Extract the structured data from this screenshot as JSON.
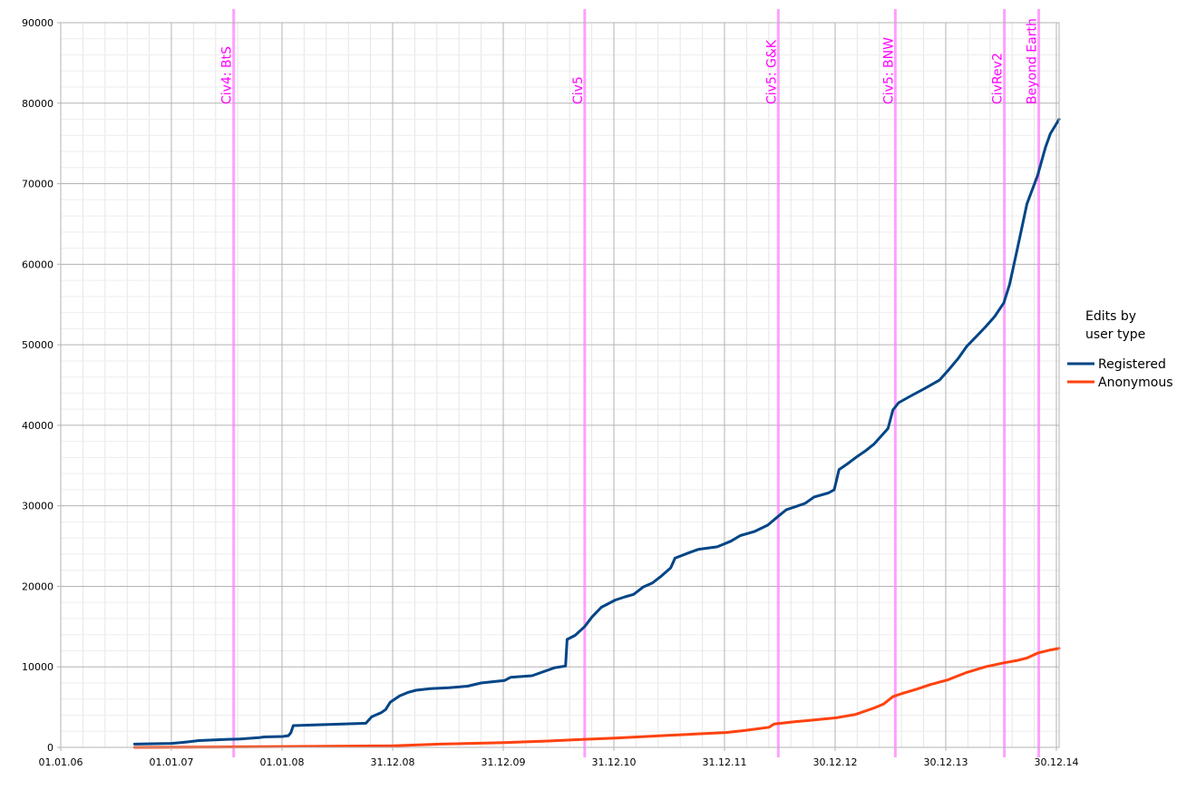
{
  "chart_data": {
    "type": "line",
    "title": "",
    "xlabel": "",
    "ylabel": "",
    "x_tick_labels": [
      "01.01.06",
      "01.01.07",
      "01.01.08",
      "31.12.08",
      "31.12.09",
      "31.12.10",
      "31.12.11",
      "30.12.12",
      "30.12.13",
      "30.12.14"
    ],
    "x_range": [
      "2006-01-01",
      "2014-12-30"
    ],
    "ylim": [
      0,
      90000
    ],
    "y_ticks": [
      0,
      10000,
      20000,
      30000,
      40000,
      50000,
      60000,
      70000,
      80000,
      90000
    ],
    "grid": {
      "major": true,
      "minor": true
    },
    "legend": {
      "title": "Edits by user type",
      "position": "right"
    },
    "events": [
      {
        "date": "2007-07-24",
        "label": "Civ4: BtS"
      },
      {
        "date": "2010-09-21",
        "label": "Civ5"
      },
      {
        "date": "2012-06-19",
        "label": "Civ5: G&K"
      },
      {
        "date": "2013-07-09",
        "label": "Civ5: BNW"
      },
      {
        "date": "2014-07-03",
        "label": "CivRev2"
      },
      {
        "date": "2014-10-24",
        "label": "Beyond Earth"
      }
    ],
    "series": [
      {
        "name": "Registered",
        "color": "#004586",
        "points": [
          [
            "2006-09-01",
            400
          ],
          [
            "2006-11-01",
            450
          ],
          [
            "2007-01-01",
            500
          ],
          [
            "2007-02-15",
            650
          ],
          [
            "2007-04-01",
            850
          ],
          [
            "2007-06-01",
            950
          ],
          [
            "2007-08-15",
            1050
          ],
          [
            "2007-10-15",
            1200
          ],
          [
            "2007-11-01",
            1300
          ],
          [
            "2008-01-01",
            1350
          ],
          [
            "2008-01-20",
            1450
          ],
          [
            "2008-01-28",
            1800
          ],
          [
            "2008-02-05",
            2700
          ],
          [
            "2008-06-01",
            2850
          ],
          [
            "2008-09-01",
            2950
          ],
          [
            "2008-10-01",
            3000
          ],
          [
            "2008-10-20",
            3800
          ],
          [
            "2008-11-20",
            4300
          ],
          [
            "2008-12-05",
            4700
          ],
          [
            "2008-12-20",
            5600
          ],
          [
            "2009-01-20",
            6400
          ],
          [
            "2009-02-15",
            6800
          ],
          [
            "2009-03-15",
            7100
          ],
          [
            "2009-05-01",
            7300
          ],
          [
            "2009-07-01",
            7400
          ],
          [
            "2009-09-01",
            7600
          ],
          [
            "2009-10-15",
            8000
          ],
          [
            "2009-12-31",
            8300
          ],
          [
            "2010-01-20",
            8700
          ],
          [
            "2010-04-01",
            8900
          ],
          [
            "2010-06-15",
            9900
          ],
          [
            "2010-07-20",
            10100
          ],
          [
            "2010-07-25",
            13400
          ],
          [
            "2010-08-20",
            13900
          ],
          [
            "2010-09-21",
            15000
          ],
          [
            "2010-10-15",
            16200
          ],
          [
            "2010-11-15",
            17400
          ],
          [
            "2010-12-31",
            18300
          ],
          [
            "2011-02-01",
            18700
          ],
          [
            "2011-03-01",
            19000
          ],
          [
            "2011-04-01",
            19900
          ],
          [
            "2011-05-01",
            20400
          ],
          [
            "2011-06-01",
            21300
          ],
          [
            "2011-07-01",
            22300
          ],
          [
            "2011-07-15",
            23500
          ],
          [
            "2011-09-01",
            24200
          ],
          [
            "2011-10-01",
            24600
          ],
          [
            "2011-12-01",
            24900
          ],
          [
            "2012-01-15",
            25600
          ],
          [
            "2012-02-15",
            26300
          ],
          [
            "2012-04-01",
            26800
          ],
          [
            "2012-05-15",
            27600
          ],
          [
            "2012-06-19",
            28700
          ],
          [
            "2012-07-15",
            29500
          ],
          [
            "2012-08-15",
            29900
          ],
          [
            "2012-09-15",
            30300
          ],
          [
            "2012-10-15",
            31100
          ],
          [
            "2012-12-01",
            31600
          ],
          [
            "2012-12-20",
            32000
          ],
          [
            "2013-01-05",
            34500
          ],
          [
            "2013-02-01",
            35200
          ],
          [
            "2013-03-01",
            36000
          ],
          [
            "2013-04-01",
            36800
          ],
          [
            "2013-05-01",
            37700
          ],
          [
            "2013-06-15",
            39600
          ],
          [
            "2013-07-01",
            41900
          ],
          [
            "2013-07-20",
            42800
          ],
          [
            "2013-09-01",
            43700
          ],
          [
            "2013-10-15",
            44600
          ],
          [
            "2013-12-01",
            45600
          ],
          [
            "2014-01-01",
            46900
          ],
          [
            "2014-02-01",
            48300
          ],
          [
            "2014-03-01",
            49800
          ],
          [
            "2014-04-01",
            51000
          ],
          [
            "2014-05-01",
            52200
          ],
          [
            "2014-06-01",
            53500
          ],
          [
            "2014-07-01",
            55200
          ],
          [
            "2014-07-20",
            57500
          ],
          [
            "2014-08-15",
            62000
          ],
          [
            "2014-09-15",
            67500
          ],
          [
            "2014-10-20",
            71000
          ],
          [
            "2014-11-15",
            74500
          ],
          [
            "2014-12-01",
            76200
          ],
          [
            "2014-12-30",
            78000
          ]
        ]
      },
      {
        "name": "Anonymous",
        "color": "#ff420e",
        "points": [
          [
            "2006-09-01",
            0
          ],
          [
            "2007-06-01",
            50
          ],
          [
            "2008-01-01",
            100
          ],
          [
            "2008-12-31",
            200
          ],
          [
            "2009-06-01",
            400
          ],
          [
            "2009-12-31",
            600
          ],
          [
            "2010-06-01",
            800
          ],
          [
            "2010-09-21",
            1000
          ],
          [
            "2010-12-31",
            1150
          ],
          [
            "2011-06-01",
            1450
          ],
          [
            "2011-12-31",
            1850
          ],
          [
            "2012-03-01",
            2100
          ],
          [
            "2012-05-20",
            2500
          ],
          [
            "2012-06-05",
            2900
          ],
          [
            "2012-08-15",
            3200
          ],
          [
            "2012-10-15",
            3400
          ],
          [
            "2012-12-30",
            3700
          ],
          [
            "2013-03-01",
            4100
          ],
          [
            "2013-05-01",
            4900
          ],
          [
            "2013-06-01",
            5400
          ],
          [
            "2013-07-01",
            6300
          ],
          [
            "2013-08-01",
            6700
          ],
          [
            "2013-09-15",
            7200
          ],
          [
            "2013-11-01",
            7800
          ],
          [
            "2013-12-30",
            8400
          ],
          [
            "2014-03-01",
            9300
          ],
          [
            "2014-05-01",
            10000
          ],
          [
            "2014-07-01",
            10500
          ],
          [
            "2014-08-15",
            10800
          ],
          [
            "2014-09-15",
            11100
          ],
          [
            "2014-10-20",
            11700
          ],
          [
            "2014-12-01",
            12100
          ],
          [
            "2014-12-30",
            12300
          ]
        ]
      }
    ]
  }
}
